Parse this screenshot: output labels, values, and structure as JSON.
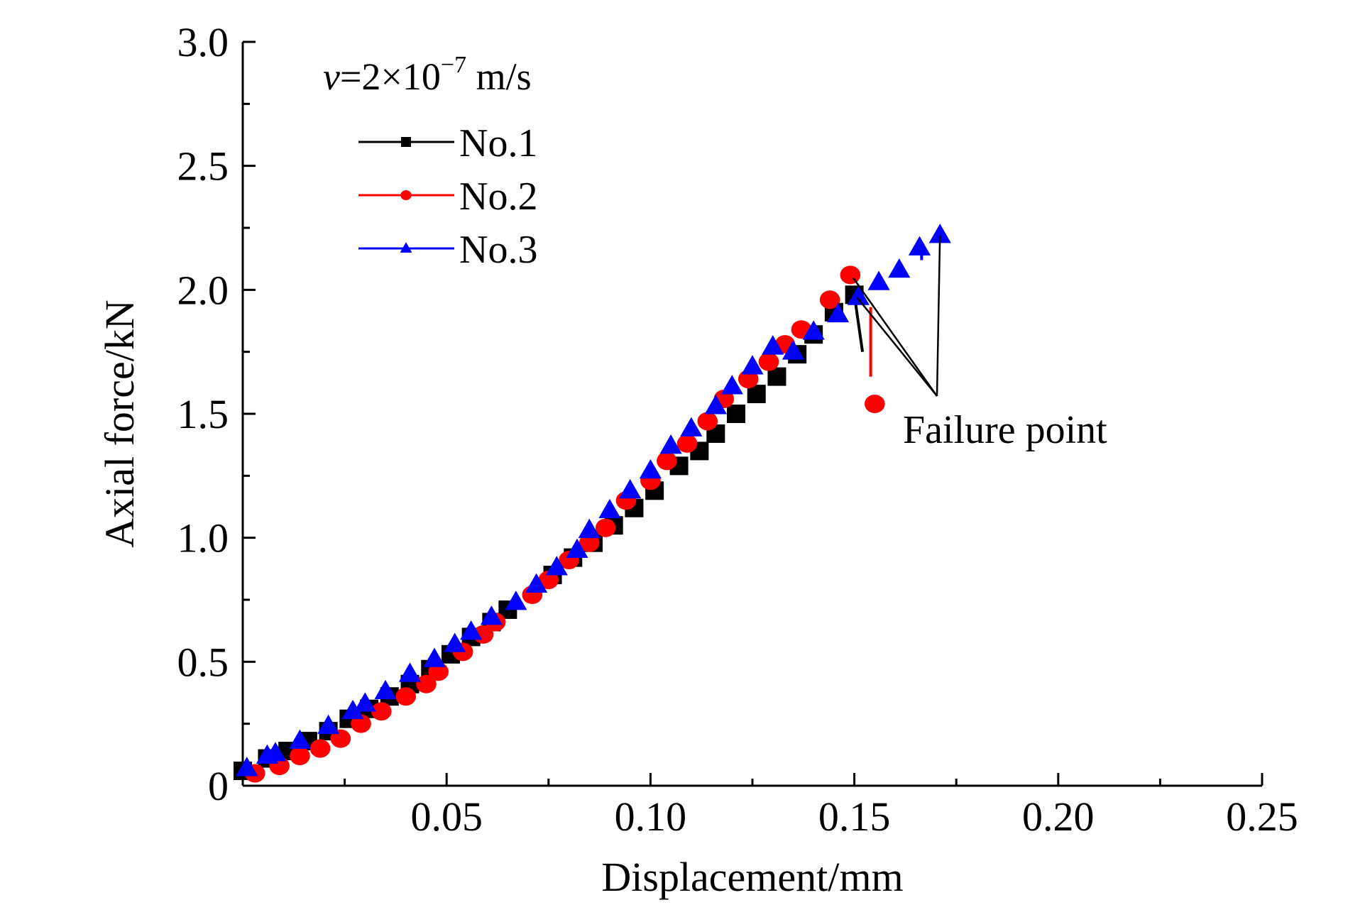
{
  "chart_data": {
    "type": "scatter",
    "title": "",
    "xlabel": "Displacement/mm",
    "ylabel": "Axial force/kN",
    "xlim": [
      0,
      0.25
    ],
    "ylim": [
      0,
      3.0
    ],
    "x_ticks": [
      {
        "value": 0.05,
        "label": "0.05"
      },
      {
        "value": 0.1,
        "label": "0.10"
      },
      {
        "value": 0.15,
        "label": "0.15"
      },
      {
        "value": 0.2,
        "label": "0.20"
      },
      {
        "value": 0.25,
        "label": "0.25"
      }
    ],
    "y_ticks": [
      {
        "value": 0,
        "label": "0"
      },
      {
        "value": 0.5,
        "label": "0.5"
      },
      {
        "value": 1.0,
        "label": "1.0"
      },
      {
        "value": 1.5,
        "label": "1.5"
      },
      {
        "value": 2.0,
        "label": "2.0"
      },
      {
        "value": 2.5,
        "label": "2.5"
      },
      {
        "value": 3.0,
        "label": "3.0"
      }
    ],
    "grid": false,
    "legend_position": "top-left",
    "condition_label": {
      "v": "v",
      "eq": "=2",
      "times": "×",
      "base": "10",
      "exp": "−7",
      "unit": " m/s"
    },
    "annotation": {
      "text": "Failure point"
    },
    "series": [
      {
        "name": "No.1",
        "marker": "square",
        "color": "#000000",
        "points": [
          [
            0.0,
            0.06
          ],
          [
            0.006,
            0.11
          ],
          [
            0.011,
            0.14
          ],
          [
            0.016,
            0.18
          ],
          [
            0.021,
            0.22
          ],
          [
            0.026,
            0.27
          ],
          [
            0.031,
            0.31
          ],
          [
            0.036,
            0.36
          ],
          [
            0.041,
            0.41
          ],
          [
            0.046,
            0.47
          ],
          [
            0.051,
            0.53
          ],
          [
            0.056,
            0.6
          ],
          [
            0.061,
            0.66
          ],
          [
            0.065,
            0.71
          ],
          [
            0.076,
            0.85
          ],
          [
            0.081,
            0.92
          ],
          [
            0.086,
            0.98
          ],
          [
            0.091,
            1.05
          ],
          [
            0.096,
            1.12
          ],
          [
            0.101,
            1.19
          ],
          [
            0.107,
            1.29
          ],
          [
            0.112,
            1.35
          ],
          [
            0.116,
            1.42
          ],
          [
            0.121,
            1.5
          ],
          [
            0.126,
            1.58
          ],
          [
            0.131,
            1.65
          ],
          [
            0.136,
            1.74
          ],
          [
            0.14,
            1.82
          ],
          [
            0.145,
            1.91
          ],
          [
            0.15,
            1.98
          ]
        ],
        "failure_drop": [
          [
            0.15,
            1.98
          ],
          [
            0.152,
            1.75
          ]
        ]
      },
      {
        "name": "No.2",
        "marker": "circle",
        "color": "#ff0000",
        "points": [
          [
            0.003,
            0.05
          ],
          [
            0.009,
            0.08
          ],
          [
            0.014,
            0.12
          ],
          [
            0.019,
            0.15
          ],
          [
            0.024,
            0.19
          ],
          [
            0.029,
            0.25
          ],
          [
            0.034,
            0.3
          ],
          [
            0.04,
            0.36
          ],
          [
            0.045,
            0.41
          ],
          [
            0.048,
            0.46
          ],
          [
            0.054,
            0.54
          ],
          [
            0.059,
            0.61
          ],
          [
            0.062,
            0.66
          ],
          [
            0.071,
            0.77
          ],
          [
            0.075,
            0.83
          ],
          [
            0.08,
            0.91
          ],
          [
            0.085,
            0.98
          ],
          [
            0.089,
            1.04
          ],
          [
            0.094,
            1.15
          ],
          [
            0.1,
            1.23
          ],
          [
            0.104,
            1.31
          ],
          [
            0.109,
            1.38
          ],
          [
            0.114,
            1.47
          ],
          [
            0.118,
            1.56
          ],
          [
            0.124,
            1.64
          ],
          [
            0.129,
            1.71
          ],
          [
            0.133,
            1.78
          ],
          [
            0.137,
            1.84
          ],
          [
            0.144,
            1.96
          ],
          [
            0.149,
            2.06
          ],
          [
            0.155,
            1.54
          ]
        ],
        "failure_drop": [
          [
            0.154,
            1.93
          ],
          [
            0.154,
            1.65
          ]
        ]
      },
      {
        "name": "No.3",
        "marker": "triangle",
        "color": "#0000ff",
        "points": [
          [
            0.001,
            0.07
          ],
          [
            0.006,
            0.12
          ],
          [
            0.008,
            0.13
          ],
          [
            0.014,
            0.18
          ],
          [
            0.021,
            0.24
          ],
          [
            0.027,
            0.3
          ],
          [
            0.03,
            0.33
          ],
          [
            0.035,
            0.38
          ],
          [
            0.041,
            0.45
          ],
          [
            0.047,
            0.51
          ],
          [
            0.052,
            0.57
          ],
          [
            0.056,
            0.62
          ],
          [
            0.061,
            0.68
          ],
          [
            0.067,
            0.74
          ],
          [
            0.072,
            0.81
          ],
          [
            0.077,
            0.88
          ],
          [
            0.082,
            0.95
          ],
          [
            0.085,
            1.03
          ],
          [
            0.09,
            1.11
          ],
          [
            0.095,
            1.19
          ],
          [
            0.1,
            1.27
          ],
          [
            0.105,
            1.37
          ],
          [
            0.11,
            1.44
          ],
          [
            0.116,
            1.53
          ],
          [
            0.12,
            1.61
          ],
          [
            0.125,
            1.69
          ],
          [
            0.13,
            1.77
          ],
          [
            0.135,
            1.75
          ],
          [
            0.14,
            1.83
          ],
          [
            0.146,
            1.9
          ],
          [
            0.151,
            1.97
          ],
          [
            0.156,
            2.03
          ],
          [
            0.161,
            2.08
          ],
          [
            0.166,
            2.17
          ],
          [
            0.171,
            2.22
          ]
        ],
        "failure_drop": [
          [
            0.1665,
            2.14
          ],
          [
            0.1665,
            2.12
          ]
        ]
      }
    ]
  }
}
